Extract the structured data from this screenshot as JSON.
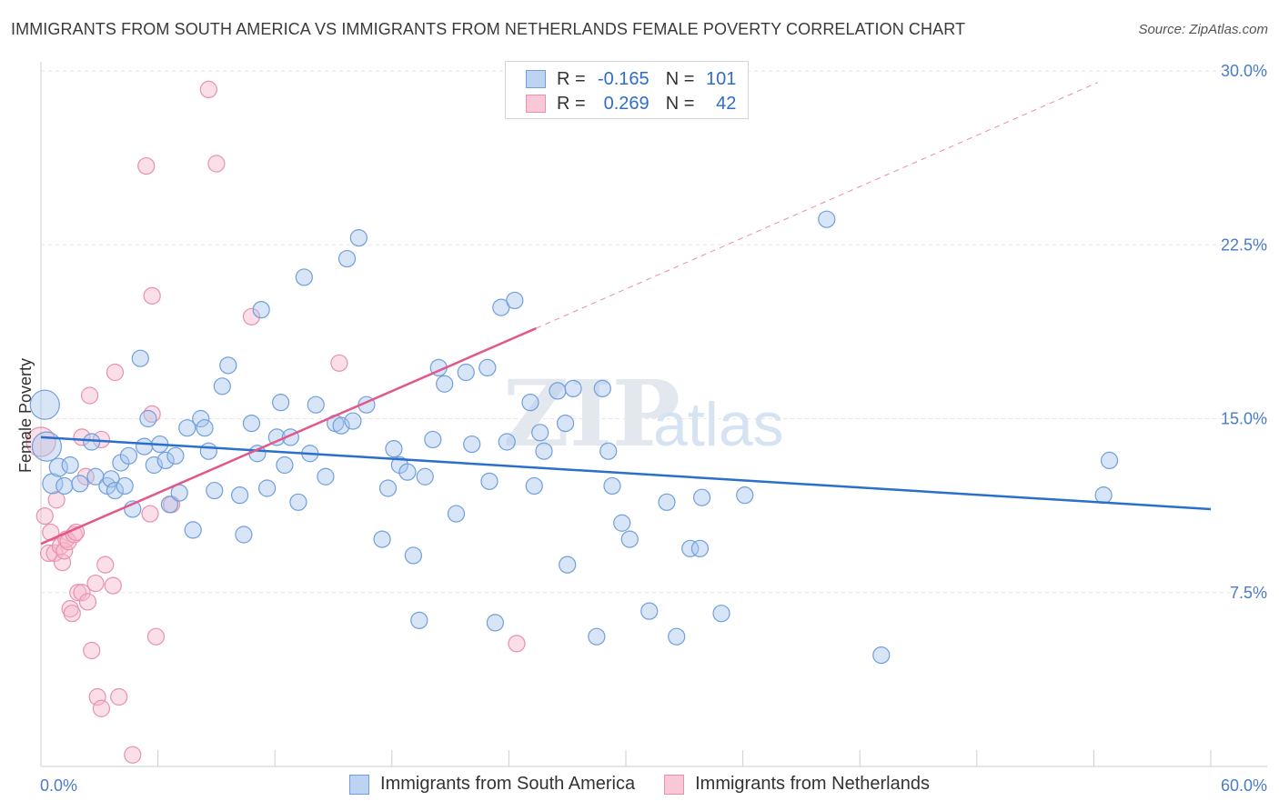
{
  "header": {
    "title": "IMMIGRANTS FROM SOUTH AMERICA VS IMMIGRANTS FROM NETHERLANDS FEMALE POVERTY CORRELATION CHART",
    "source": "Source: ZipAtlas.com"
  },
  "legend": {
    "rows": [
      {
        "r_label": "R =",
        "r_value": "-0.165",
        "n_label": "N =",
        "n_value": "101"
      },
      {
        "r_label": "R =",
        "r_value": "0.269",
        "n_label": "N =",
        "n_value": "42"
      }
    ]
  },
  "watermark": {
    "zip": "ZIP",
    "atlas": "atlas"
  },
  "colors": {
    "blue_fill": "#a9c6ee",
    "blue_stroke": "#6f9fdc",
    "blue_line": "#2b6fcd",
    "pink_fill": "#f6b9cb",
    "pink_stroke": "#e891ac",
    "pink_line": "#e2588a",
    "grid": "#e6e6e6",
    "tick_text": "#4a7cc7"
  },
  "chart_data": {
    "type": "scatter",
    "title": "IMMIGRANTS FROM SOUTH AMERICA VS IMMIGRANTS FROM NETHERLANDS FEMALE POVERTY CORRELATION CHART",
    "xlabel": "",
    "ylabel": "Female Poverty",
    "xlim": [
      0,
      60
    ],
    "ylim": [
      0,
      31
    ],
    "x_tick_labels": [
      "0.0%",
      "60.0%"
    ],
    "y_ticks": [
      7.5,
      15.0,
      22.5,
      30.0
    ],
    "y_tick_labels": [
      "7.5%",
      "15.0%",
      "22.5%",
      "30.0%"
    ],
    "grid": true,
    "legend_position": "top-center",
    "series": [
      {
        "name": "Immigrants from South America",
        "color": "blue",
        "r": -0.165,
        "n": 101,
        "trend": {
          "x0": 0,
          "y0": 14.2,
          "x1": 60,
          "y1": 11.1
        },
        "points": [
          [
            0.2,
            15.6,
            16
          ],
          [
            0.3,
            13.8,
            16
          ],
          [
            0.6,
            12.2,
            11
          ],
          [
            0.9,
            12.9,
            10
          ],
          [
            1.2,
            12.1,
            9
          ],
          [
            1.5,
            13,
            9
          ],
          [
            2,
            12.2,
            9
          ],
          [
            2.6,
            14,
            9
          ],
          [
            2.8,
            12.5,
            9
          ],
          [
            3.4,
            12.1,
            9
          ],
          [
            3.6,
            12.4,
            9
          ],
          [
            3.8,
            11.9,
            9
          ],
          [
            4.1,
            13.1,
            9
          ],
          [
            4.3,
            12.1,
            9
          ],
          [
            4.5,
            13.4,
            9
          ],
          [
            4.7,
            11.1,
            9
          ],
          [
            5.1,
            17.6,
            9
          ],
          [
            5.3,
            13.8,
            9
          ],
          [
            5.5,
            15,
            9
          ],
          [
            5.8,
            13,
            9
          ],
          [
            6.1,
            13.9,
            9
          ],
          [
            6.4,
            13.2,
            9
          ],
          [
            6.6,
            11.3,
            9
          ],
          [
            6.9,
            13.4,
            9
          ],
          [
            7.1,
            11.8,
            9
          ],
          [
            7.5,
            14.6,
            9
          ],
          [
            7.8,
            10.2,
            9
          ],
          [
            8.2,
            15,
            9
          ],
          [
            8.4,
            14.6,
            9
          ],
          [
            8.6,
            13.6,
            9
          ],
          [
            8.9,
            11.9,
            9
          ],
          [
            9.3,
            16.4,
            9
          ],
          [
            9.6,
            17.3,
            9
          ],
          [
            10.2,
            11.7,
            9
          ],
          [
            10.4,
            10,
            9
          ],
          [
            10.8,
            14.8,
            9
          ],
          [
            11.1,
            13.5,
            9
          ],
          [
            11.3,
            19.7,
            9
          ],
          [
            11.6,
            12,
            9
          ],
          [
            12.1,
            14.2,
            9
          ],
          [
            12.3,
            15.7,
            9
          ],
          [
            12.5,
            13,
            9
          ],
          [
            12.8,
            14.2,
            9
          ],
          [
            13.2,
            11.4,
            9
          ],
          [
            13.5,
            21.1,
            9
          ],
          [
            13.8,
            13.5,
            9
          ],
          [
            14.1,
            15.6,
            9
          ],
          [
            14.6,
            12.5,
            9
          ],
          [
            15.1,
            14.8,
            9
          ],
          [
            15.4,
            14.7,
            9
          ],
          [
            15.7,
            21.9,
            9
          ],
          [
            16,
            14.9,
            9
          ],
          [
            16.3,
            22.8,
            9
          ],
          [
            16.7,
            15.6,
            9
          ],
          [
            17.5,
            9.8,
            9
          ],
          [
            17.8,
            12,
            9
          ],
          [
            18.1,
            13.7,
            9
          ],
          [
            18.4,
            13,
            9
          ],
          [
            18.8,
            12.7,
            9
          ],
          [
            19.1,
            9.1,
            9
          ],
          [
            19.4,
            6.3,
            9
          ],
          [
            19.7,
            12.5,
            9
          ],
          [
            20.1,
            14.1,
            9
          ],
          [
            20.4,
            17.2,
            9
          ],
          [
            20.7,
            16.5,
            9
          ],
          [
            21.3,
            10.9,
            9
          ],
          [
            21.8,
            17,
            9
          ],
          [
            22.1,
            13.9,
            9
          ],
          [
            22.9,
            17.2,
            9
          ],
          [
            23,
            12.3,
            9
          ],
          [
            23.3,
            6.2,
            9
          ],
          [
            23.6,
            19.8,
            9
          ],
          [
            23.9,
            14,
            9
          ],
          [
            24.3,
            20.1,
            9
          ],
          [
            25.1,
            15.7,
            9
          ],
          [
            25.3,
            12.1,
            9
          ],
          [
            25.6,
            14.4,
            9
          ],
          [
            25.8,
            13.6,
            9
          ],
          [
            26.5,
            16.2,
            9
          ],
          [
            26.9,
            14.8,
            9
          ],
          [
            27,
            8.7,
            9
          ],
          [
            27.3,
            16.3,
            9
          ],
          [
            28.5,
            5.6,
            9
          ],
          [
            28.8,
            16.3,
            9
          ],
          [
            29.1,
            13.6,
            9
          ],
          [
            29.3,
            12.1,
            9
          ],
          [
            29.8,
            10.5,
            9
          ],
          [
            30.2,
            9.8,
            9
          ],
          [
            31.2,
            6.7,
            9
          ],
          [
            32.1,
            11.4,
            9
          ],
          [
            32.6,
            5.6,
            9
          ],
          [
            33.3,
            9.4,
            9
          ],
          [
            33.8,
            9.4,
            9
          ],
          [
            33.9,
            11.6,
            9
          ],
          [
            34.9,
            6.6,
            9
          ],
          [
            36.1,
            11.7,
            9
          ],
          [
            40.3,
            23.6,
            9
          ],
          [
            43.1,
            4.8,
            9
          ],
          [
            54.5,
            11.7,
            9
          ],
          [
            54.8,
            13.2,
            9
          ]
        ]
      },
      {
        "name": "Immigrants from Netherlands",
        "color": "pink",
        "r": 0.269,
        "n": 42,
        "trend": {
          "x0": 0,
          "y0": 9.6,
          "x1": 25.4,
          "y1": 18.9
        },
        "trend_extended": {
          "x0": 25.4,
          "y0": 18.9,
          "x1": 54.2,
          "y1": 29.5
        },
        "points": [
          [
            0,
            14,
            16
          ],
          [
            0.2,
            10.8,
            9
          ],
          [
            0.4,
            9.2,
            9
          ],
          [
            0.5,
            10.1,
            9
          ],
          [
            0.7,
            9.2,
            9
          ],
          [
            0.8,
            11.5,
            9
          ],
          [
            1,
            9.5,
            9
          ],
          [
            1.1,
            8.8,
            9
          ],
          [
            1.2,
            9.3,
            9
          ],
          [
            1.3,
            9.8,
            9
          ],
          [
            1.4,
            9.7,
            9
          ],
          [
            1.5,
            6.8,
            9
          ],
          [
            1.6,
            6.6,
            9
          ],
          [
            1.7,
            10,
            9
          ],
          [
            1.8,
            10.1,
            9
          ],
          [
            1.9,
            7.5,
            9
          ],
          [
            2.1,
            14.2,
            9
          ],
          [
            2.1,
            7.5,
            9
          ],
          [
            2.3,
            12.5,
            9
          ],
          [
            2.4,
            7.1,
            9
          ],
          [
            2.5,
            16,
            9
          ],
          [
            2.6,
            5,
            9
          ],
          [
            2.8,
            7.9,
            9
          ],
          [
            2.9,
            3,
            9
          ],
          [
            3.1,
            14.1,
            9
          ],
          [
            3.1,
            2.5,
            9
          ],
          [
            3.3,
            8.7,
            9
          ],
          [
            3.7,
            7.8,
            9
          ],
          [
            3.8,
            17,
            9
          ],
          [
            4,
            3,
            9
          ],
          [
            4.7,
            0.5,
            9
          ],
          [
            5.4,
            25.9,
            9
          ],
          [
            5.6,
            10.9,
            9
          ],
          [
            5.7,
            15.2,
            9
          ],
          [
            5.7,
            20.3,
            9
          ],
          [
            5.9,
            5.6,
            9
          ],
          [
            6.7,
            11.3,
            9
          ],
          [
            8.6,
            29.2,
            9
          ],
          [
            9,
            26,
            9
          ],
          [
            10.8,
            19.4,
            9
          ],
          [
            15.3,
            17.4,
            9
          ],
          [
            24.4,
            5.3,
            9
          ]
        ]
      }
    ]
  },
  "bottom_legend": {
    "items": [
      {
        "label": "Immigrants from South America"
      },
      {
        "label": "Immigrants from Netherlands"
      }
    ]
  }
}
